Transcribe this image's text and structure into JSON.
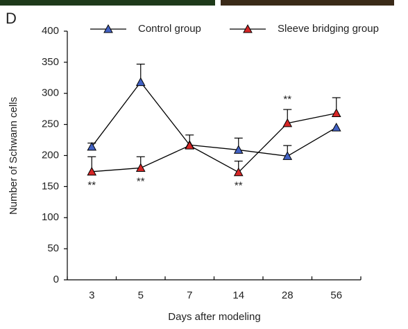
{
  "chart_data": {
    "type": "line",
    "panel_label": "D",
    "x_label": "Days after modeling",
    "y_label": "Number of Schwann cells",
    "categories": [
      "3",
      "5",
      "7",
      "14",
      "28",
      "56"
    ],
    "series": [
      {
        "name": "Control group",
        "color": "#4262c4",
        "values": [
          214,
          318,
          217,
          209,
          199,
          245
        ],
        "errors": [
          6,
          29,
          16,
          19,
          17,
          null
        ]
      },
      {
        "name": "Sleeve bridging group",
        "color": "#d62626",
        "values": [
          174,
          180,
          216,
          173,
          252,
          268
        ],
        "errors": [
          24,
          18,
          null,
          18,
          22,
          25
        ]
      }
    ],
    "significance": [
      "**",
      "**",
      null,
      "**",
      "**",
      null
    ],
    "ylim": [
      0,
      400
    ],
    "yticks": [
      0,
      50,
      100,
      150,
      200,
      250,
      300,
      350,
      400
    ],
    "legend": "top"
  }
}
